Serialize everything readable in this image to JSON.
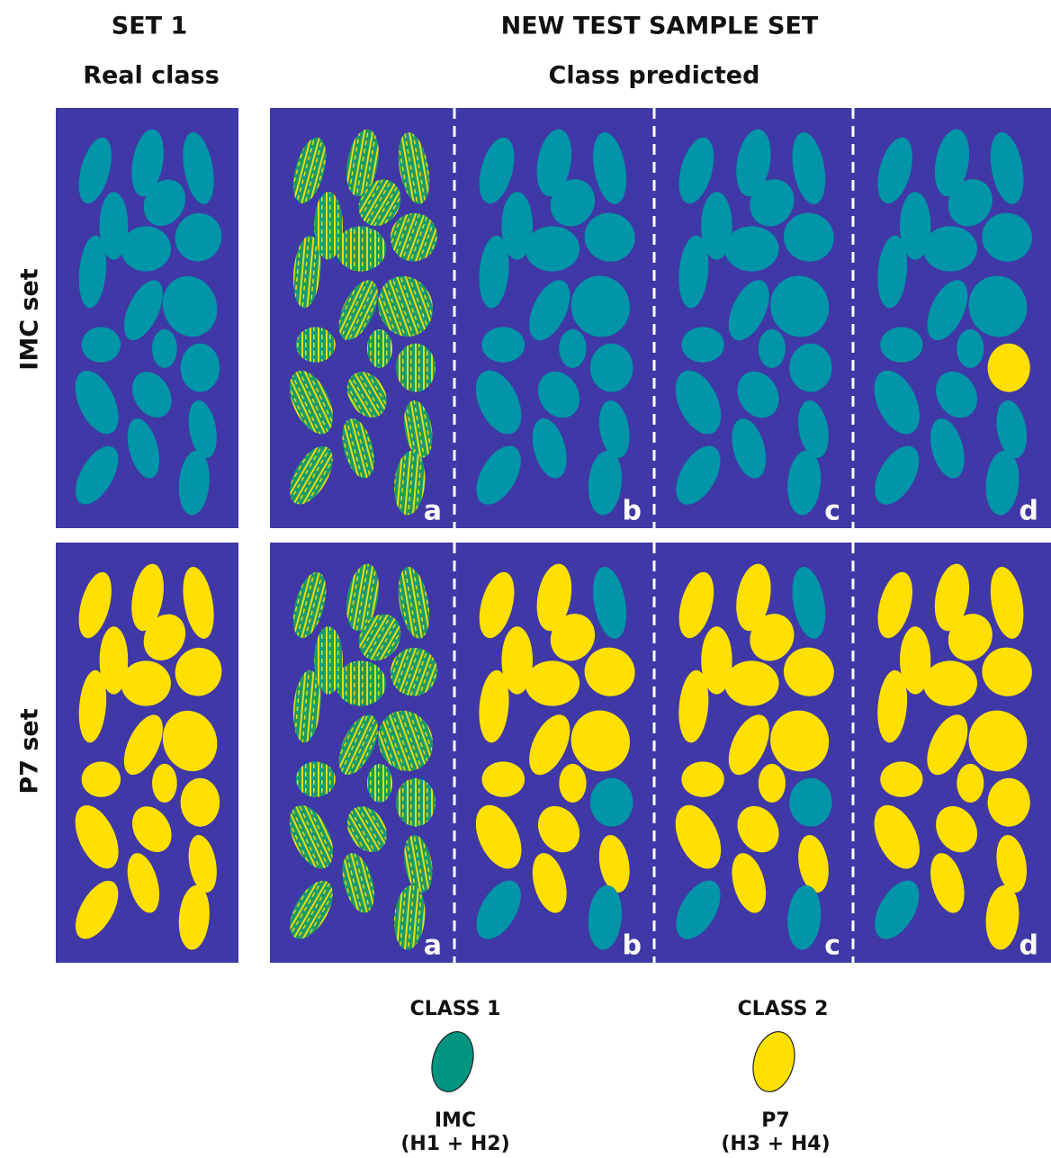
{
  "header": {
    "left_title": "SET 1",
    "left_subtitle": "Real class",
    "right_title": "NEW TEST SAMPLE SET",
    "right_subtitle": "Class predicted"
  },
  "rows": [
    {
      "label": "IMC set",
      "panels": [
        "a",
        "b",
        "c",
        "d"
      ]
    },
    {
      "label": "P7 set",
      "panels": [
        "a",
        "b",
        "c",
        "d"
      ]
    }
  ],
  "legend": [
    {
      "title": "CLASS 1",
      "name": "IMC",
      "detail": "(H1 + H2)",
      "color": "#009580"
    },
    {
      "title": "CLASS 2",
      "name": "P7",
      "detail": "(H3 + H4)",
      "color": "#ffe000"
    }
  ]
}
